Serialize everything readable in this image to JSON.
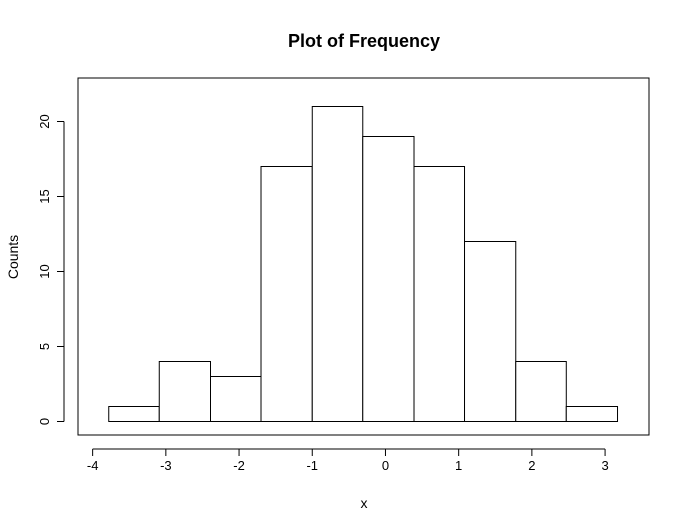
{
  "chart_data": {
    "type": "bar",
    "subtype": "histogram",
    "title": "Plot of Frequency",
    "xlabel": "x",
    "ylabel": "Counts",
    "xlim": [
      -4.2,
      3.6
    ],
    "ylim": [
      -0.9,
      22.9
    ],
    "x_ticks": [
      -4,
      -3,
      -2,
      -1,
      0,
      1,
      2,
      3
    ],
    "y_ticks": [
      0,
      5,
      10,
      15,
      20
    ],
    "bins": [
      {
        "start": -3.78,
        "end": -3.09,
        "count": 1
      },
      {
        "start": -3.09,
        "end": -2.39,
        "count": 4
      },
      {
        "start": -2.39,
        "end": -1.7,
        "count": 3
      },
      {
        "start": -1.7,
        "end": -1.0,
        "count": 17
      },
      {
        "start": -1.0,
        "end": -0.31,
        "count": 21
      },
      {
        "start": -0.31,
        "end": 0.39,
        "count": 19
      },
      {
        "start": 0.39,
        "end": 1.08,
        "count": 17
      },
      {
        "start": 1.08,
        "end": 1.78,
        "count": 12
      },
      {
        "start": 1.78,
        "end": 2.47,
        "count": 4
      },
      {
        "start": 2.47,
        "end": 3.17,
        "count": 1
      }
    ],
    "bar_fill": "#ffffff",
    "bar_stroke": "#000000",
    "grid": false,
    "box": true
  }
}
